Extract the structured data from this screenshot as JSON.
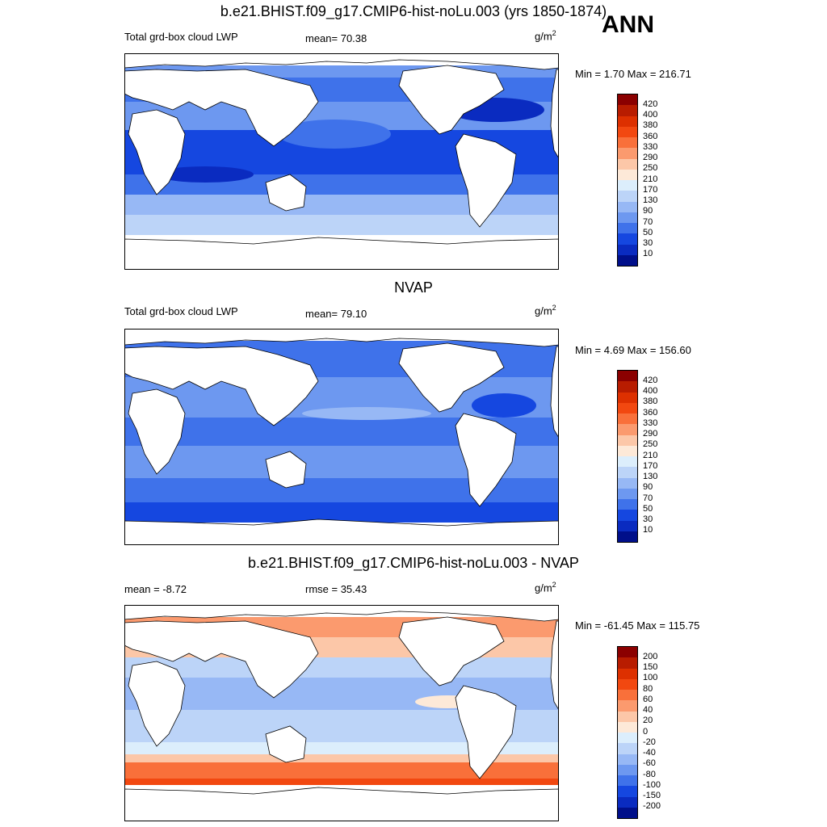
{
  "season": "ANN",
  "units_base": "g/m",
  "units_exp": "2",
  "panels": [
    {
      "title": "b.e21.BHIST.f09_g17.CMIP6-hist-noLu.003 (yrs 1850-1874)",
      "variable": "Total grd-box cloud LWP",
      "stat_label": "mean=  70.38",
      "minmax": "Min =   1.70 Max = 216.71"
    },
    {
      "title": "NVAP",
      "variable": "Total grd-box cloud LWP",
      "stat_label": "mean=  79.10",
      "minmax": "Min =   4.69 Max = 156.60"
    },
    {
      "title": "b.e21.BHIST.f09_g17.CMIP6-hist-noLu.003 - NVAP",
      "mean_label": "mean =  -8.72",
      "stat_label": "rmse =  35.43",
      "minmax": "Min = -61.45 Max = 115.75"
    }
  ],
  "colorbar_abs": {
    "labels": [
      "420",
      "400",
      "380",
      "360",
      "330",
      "290",
      "250",
      "210",
      "170",
      "130",
      "90",
      "70",
      "50",
      "30",
      "10"
    ],
    "colors": [
      "#8b0000",
      "#b81c00",
      "#dd3000",
      "#f24810",
      "#f9703a",
      "#fb9a6e",
      "#fcc7a8",
      "#fde9d8",
      "#dceefc",
      "#bcd4f8",
      "#97b8f5",
      "#6d98f0",
      "#3f72ea",
      "#1547e0",
      "#0a2bc0",
      "#000f8a"
    ]
  },
  "colorbar_diff": {
    "labels": [
      "200",
      "150",
      "100",
      "80",
      "60",
      "40",
      "20",
      "0",
      "-20",
      "-40",
      "-60",
      "-80",
      "-100",
      "-150",
      "-200"
    ],
    "colors": [
      "#8b0000",
      "#b81c00",
      "#dd3000",
      "#f24810",
      "#f9703a",
      "#fb9a6e",
      "#fcc7a8",
      "#fde9d8",
      "#dceefc",
      "#bcd4f8",
      "#97b8f5",
      "#6d98f0",
      "#3f72ea",
      "#1547e0",
      "#0a2bc0",
      "#000f8a"
    ]
  }
}
